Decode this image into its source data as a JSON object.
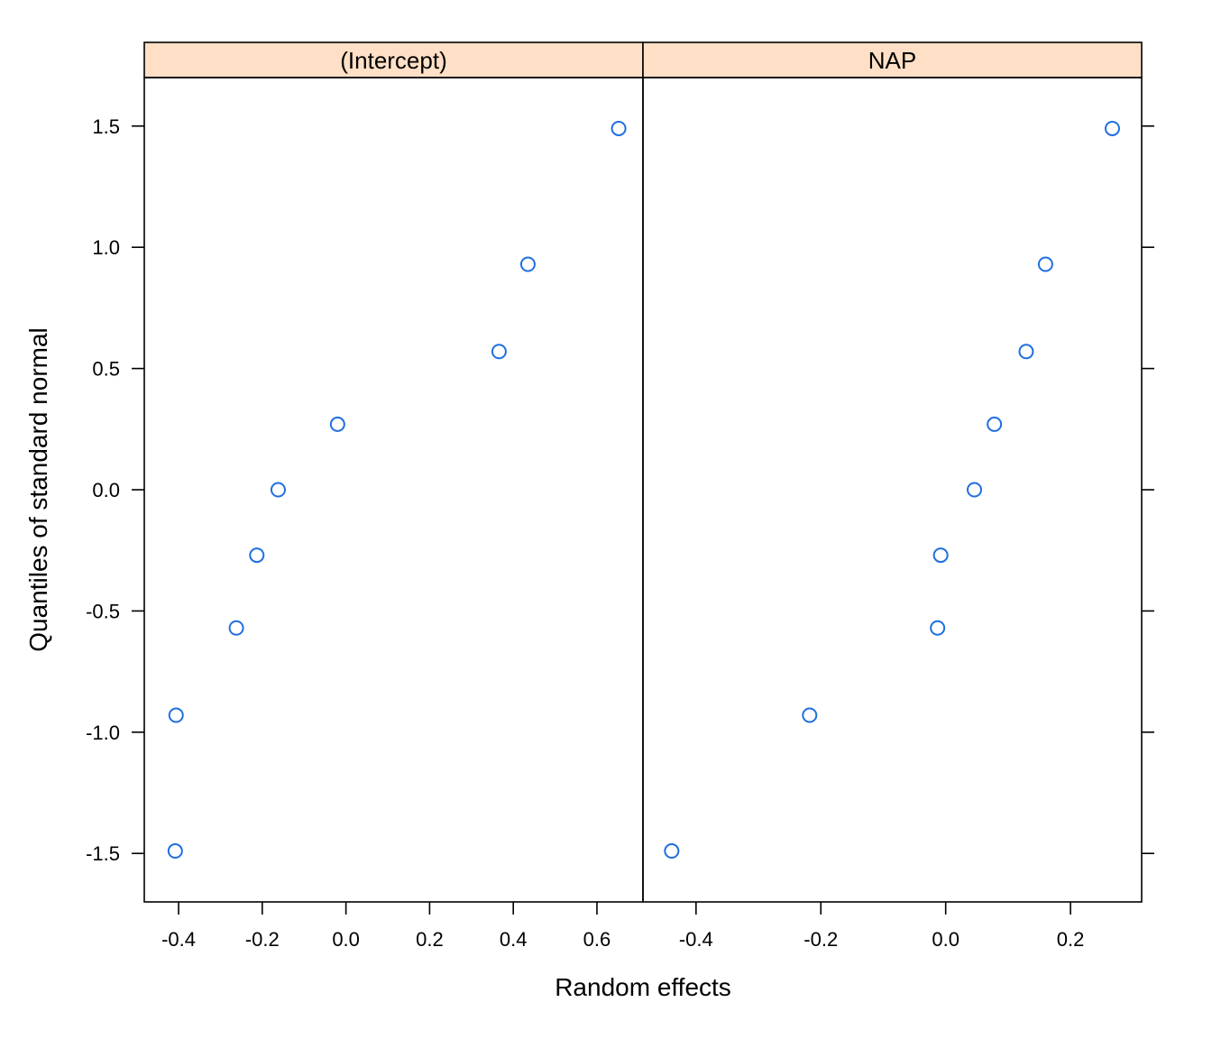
{
  "chart_data": {
    "type": "scatter",
    "layout": "two-panel trellis",
    "xlabel": "Random effects",
    "ylabel": "Quantiles of standard normal",
    "ylim": [
      -1.7,
      1.7
    ],
    "yticks": [
      {
        "value": -1.5,
        "label": "-1.5"
      },
      {
        "value": -1.0,
        "label": "-1.0"
      },
      {
        "value": -0.5,
        "label": "-0.5"
      },
      {
        "value": 0.0,
        "label": "0.0"
      },
      {
        "value": 0.5,
        "label": "0.5"
      },
      {
        "value": 1.0,
        "label": "1.0"
      },
      {
        "value": 1.5,
        "label": "1.5"
      }
    ],
    "marker": "open-circle",
    "marker_color": "#1f6fe0",
    "strip_color": "#ffe0c6",
    "panels": [
      {
        "strip_label": "(Intercept)",
        "xlim": [
          -0.482,
          0.71
        ],
        "xticks": [
          {
            "value": -0.4,
            "label": "-0.4"
          },
          {
            "value": -0.2,
            "label": "-0.2"
          },
          {
            "value": 0.0,
            "label": "0.0"
          },
          {
            "value": 0.2,
            "label": "0.2"
          },
          {
            "value": 0.4,
            "label": "0.4"
          },
          {
            "value": 0.6,
            "label": "0.6"
          }
        ],
        "points": [
          {
            "x": -0.408,
            "y": -1.49
          },
          {
            "x": -0.406,
            "y": -0.93
          },
          {
            "x": -0.262,
            "y": -0.57
          },
          {
            "x": -0.213,
            "y": -0.27
          },
          {
            "x": -0.162,
            "y": 0.0
          },
          {
            "x": -0.02,
            "y": 0.27
          },
          {
            "x": 0.366,
            "y": 0.57
          },
          {
            "x": 0.435,
            "y": 0.93
          },
          {
            "x": 0.652,
            "y": 1.49
          }
        ]
      },
      {
        "strip_label": "NAP",
        "xlim": [
          -0.485,
          0.314
        ],
        "xticks": [
          {
            "value": -0.4,
            "label": "-0.4"
          },
          {
            "value": -0.2,
            "label": "-0.2"
          },
          {
            "value": 0.0,
            "label": "0.0"
          },
          {
            "value": 0.2,
            "label": "0.2"
          }
        ],
        "points": [
          {
            "x": -0.439,
            "y": -1.49
          },
          {
            "x": -0.218,
            "y": -0.93
          },
          {
            "x": -0.013,
            "y": -0.57
          },
          {
            "x": -0.008,
            "y": -0.27
          },
          {
            "x": 0.046,
            "y": 0.0
          },
          {
            "x": 0.078,
            "y": 0.27
          },
          {
            "x": 0.129,
            "y": 0.57
          },
          {
            "x": 0.16,
            "y": 0.93
          },
          {
            "x": 0.267,
            "y": 1.49
          }
        ]
      }
    ]
  }
}
